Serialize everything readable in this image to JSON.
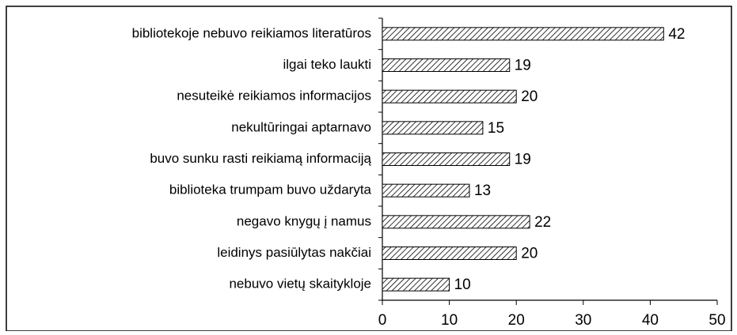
{
  "chart_data": {
    "type": "bar",
    "orientation": "horizontal",
    "categories": [
      "bibliotekoje nebuvo reikiamos literatūros",
      "ilgai teko laukti",
      "nesuteikė reikiamos informacijos",
      "nekultūringai aptarnavo",
      "buvo sunku rasti reikiamą informaciją",
      "biblioteka trumpam buvo uždaryta",
      "negavo knygų į namus",
      "leidinys pasiūlytas nakčiai",
      "nebuvo vietų skaitykloje"
    ],
    "values": [
      42,
      19,
      20,
      15,
      19,
      13,
      22,
      20,
      10
    ],
    "color": "#000000",
    "xlim": [
      0,
      50
    ],
    "xticks": [
      0,
      10,
      20,
      30,
      40,
      50
    ]
  }
}
